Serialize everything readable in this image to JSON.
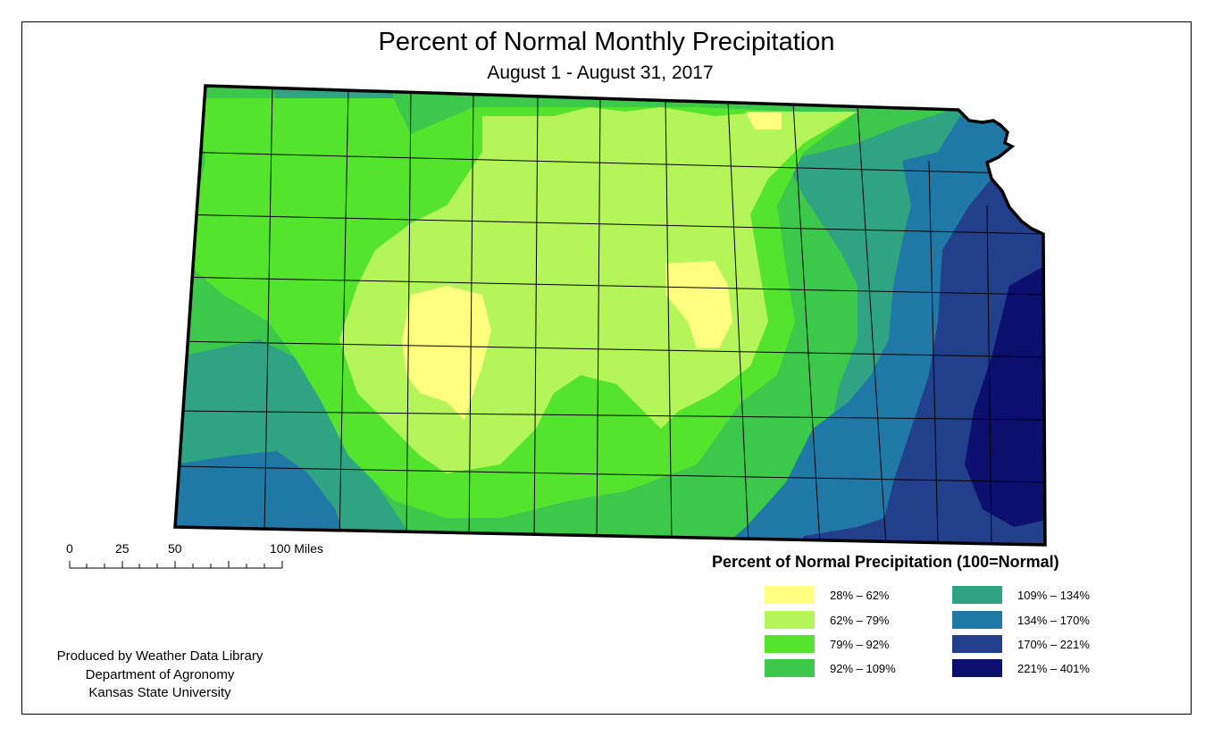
{
  "title": "Percent of Normal Monthly Precipitation",
  "subtitle": "August 1 - August 31, 2017",
  "scale_bar": {
    "labels": [
      "0",
      "25",
      "50",
      "100 Miles"
    ]
  },
  "legend": {
    "title": "Percent of Normal Precipitation (100=Normal)",
    "classes": [
      {
        "label": "28% – 62%",
        "color": "#ffff80"
      },
      {
        "label": "62% – 79%",
        "color": "#b4f55a"
      },
      {
        "label": "79% – 92%",
        "color": "#55e42d"
      },
      {
        "label": "92% – 109%",
        "color": "#3cc84b"
      },
      {
        "label": "109% – 134%",
        "color": "#2fa382"
      },
      {
        "label": "134% – 170%",
        "color": "#1f78a6"
      },
      {
        "label": "170% – 221%",
        "color": "#213f8a"
      },
      {
        "label": "221% – 401%",
        "color": "#0c0f6e"
      }
    ]
  },
  "credits": [
    "Produced by Weather Data Library",
    "Department of Agronomy",
    "Kansas State University"
  ],
  "map": {
    "region": "Kansas",
    "outline_color": "#000000",
    "county_line_color": "#000000"
  }
}
